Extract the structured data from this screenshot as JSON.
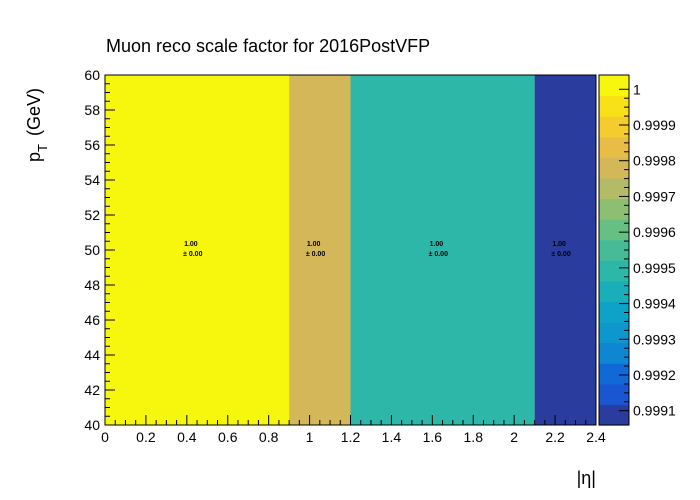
{
  "chart_data": {
    "type": "heatmap",
    "title": "Muon reco scale factor for 2016PostVFP",
    "xlabel": "|η|",
    "ylabel_main": "p",
    "ylabel_sub": "T",
    "ylabel_unit": "(GeV)",
    "x_bin_edges": [
      0,
      0.9,
      1.2,
      2.1,
      2.4
    ],
    "y_bin_edges": [
      40,
      60
    ],
    "xlim": [
      0,
      2.4
    ],
    "ylim": [
      40,
      60
    ],
    "x_ticks": [
      0,
      0.2,
      0.4,
      0.6,
      0.8,
      1,
      1.2,
      1.4,
      1.6,
      1.8,
      2,
      2.2,
      2.4
    ],
    "x_tick_labels": [
      "0",
      "0.2",
      "0.4",
      "0.6",
      "0.8",
      "1",
      "1.2",
      "1.4",
      "1.6",
      "1.8",
      "2",
      "2.2",
      "2.4"
    ],
    "y_ticks": [
      40,
      42,
      44,
      46,
      48,
      50,
      52,
      54,
      56,
      58,
      60
    ],
    "y_tick_labels": [
      "40",
      "42",
      "44",
      "46",
      "48",
      "50",
      "52",
      "54",
      "56",
      "58",
      "60"
    ],
    "cells": [
      {
        "x_bin": 0,
        "y_bin": 0,
        "value": 1.00002,
        "label": "1.00",
        "error_label": "± 0.00"
      },
      {
        "x_bin": 1,
        "y_bin": 0,
        "value": 0.99978,
        "label": "1.00",
        "error_label": "± 0.00"
      },
      {
        "x_bin": 2,
        "y_bin": 0,
        "value": 0.99948,
        "label": "1.00",
        "error_label": "± 0.00"
      },
      {
        "x_bin": 3,
        "y_bin": 0,
        "value": 0.99908,
        "label": "1.00",
        "error_label": "± 0.00"
      }
    ],
    "zlim": [
      0.99906,
      1.00004
    ],
    "colorbar_ticks": [
      0.9991,
      0.9992,
      0.9993,
      0.9994,
      0.9995,
      0.9996,
      0.9997,
      0.9998,
      0.9999,
      1.0
    ],
    "colorbar_tick_labels": [
      "0.9991",
      "0.9992",
      "0.9993",
      "0.9994",
      "0.9995",
      "0.9996",
      "0.9997",
      "0.9998",
      "0.9999",
      "1"
    ],
    "palette": [
      "#2a3c9e",
      "#1a55d2",
      "#1169d8",
      "#0e86d2",
      "#0d97cc",
      "#0fa2c8",
      "#1aaeb9",
      "#2db7a9",
      "#47bb98",
      "#66bf83",
      "#8dbf72",
      "#b3bb67",
      "#d3b759",
      "#e8bd45",
      "#f6cb2d",
      "#f8e116",
      "#f7f70d"
    ]
  }
}
